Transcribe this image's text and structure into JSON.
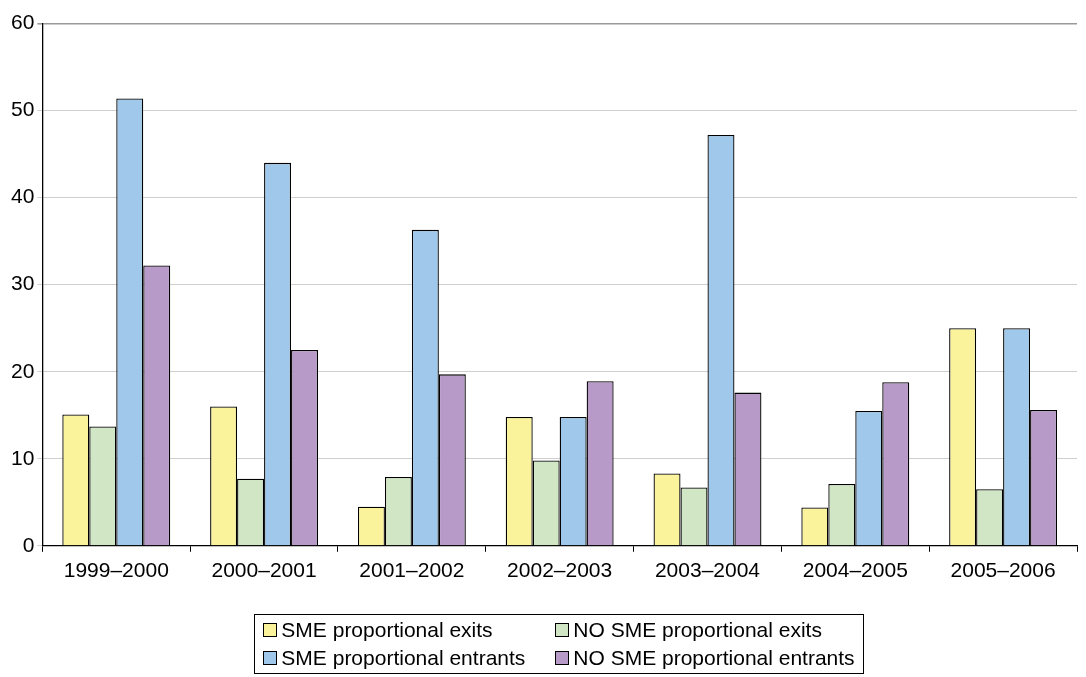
{
  "chart_data": {
    "type": "bar",
    "categories": [
      "1999–2000",
      "2000–2001",
      "2001–2002",
      "2002–2003",
      "2003–2004",
      "2004–2005",
      "2005–2006"
    ],
    "series": [
      {
        "name": "SME proportional exits",
        "color": "#faf39b",
        "values": [
          15.1,
          16.0,
          4.5,
          14.8,
          8.3,
          4.4,
          25.0
        ]
      },
      {
        "name": "NO SME proportional exits",
        "color": "#d0e6c4",
        "values": [
          13.7,
          7.7,
          7.9,
          9.8,
          6.7,
          7.1,
          6.5
        ]
      },
      {
        "name": "SME proportional entrants",
        "color": "#9fc8ea",
        "values": [
          51.4,
          44.0,
          36.3,
          14.8,
          47.2,
          15.5,
          25.0
        ]
      },
      {
        "name": "NO SME proportional entrants",
        "color": "#b79ac8",
        "values": [
          32.2,
          22.5,
          19.7,
          18.9,
          17.6,
          18.8,
          15.6
        ]
      }
    ],
    "ylim": [
      0,
      60
    ],
    "yticks": [
      0,
      10,
      20,
      30,
      40,
      50,
      60
    ],
    "grid": "y",
    "legend": "bottom"
  }
}
